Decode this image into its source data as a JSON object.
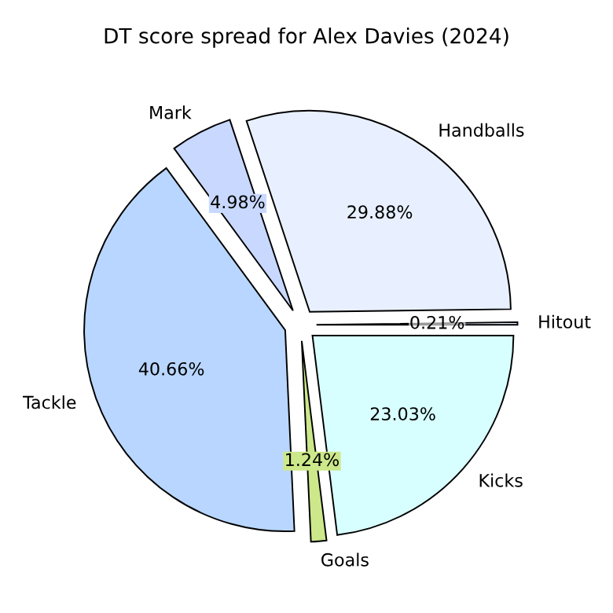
{
  "chart_data": {
    "type": "pie",
    "title": "DT score spread for Alex Davies (2024)",
    "categories": [
      "Hitout",
      "Handballs",
      "Mark",
      "Tackle",
      "Goals",
      "Kicks"
    ],
    "values": [
      0.21,
      29.88,
      4.98,
      40.66,
      1.24,
      23.03
    ],
    "value_labels": [
      "0.21%",
      "29.88%",
      "4.98%",
      "40.66%",
      "1.24%",
      "23.03%"
    ],
    "colors": [
      "#e8eeff",
      "#e8f0ff",
      "#c8d8ff",
      "#b8d6ff",
      "#cce88a",
      "#d8ffff"
    ]
  }
}
